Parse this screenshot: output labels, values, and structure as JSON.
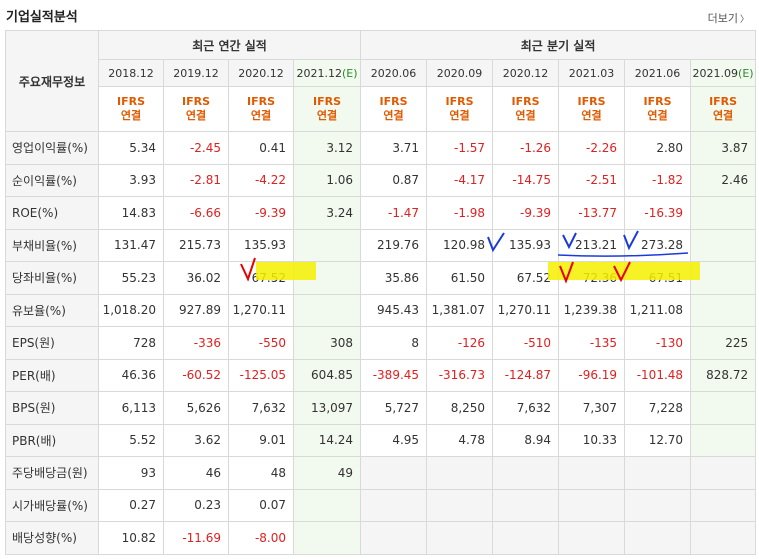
{
  "header": {
    "title": "기업실적분석",
    "more_label": "더보기"
  },
  "groups": {
    "label_header": "주요재무정보",
    "annual": "최근 연간 실적",
    "quarterly": "최근 분기 실적"
  },
  "annual_dates": [
    "2018.12",
    "2019.12",
    "2020.12",
    "2021.12"
  ],
  "quarter_dates": [
    "2020.06",
    "2020.09",
    "2020.12",
    "2021.03",
    "2021.06",
    "2021.09"
  ],
  "estimate_mark": "(E)",
  "ifrs": {
    "line1": "IFRS",
    "line2": "연결"
  },
  "rows": [
    {
      "label": "영업이익률(%)",
      "values": [
        "5.34",
        "-2.45",
        "0.41",
        "3.12",
        "3.71",
        "-1.57",
        "-1.26",
        "-2.26",
        "2.80",
        "3.87"
      ]
    },
    {
      "label": "순이익률(%)",
      "values": [
        "3.93",
        "-2.81",
        "-4.22",
        "1.06",
        "0.87",
        "-4.17",
        "-14.75",
        "-2.51",
        "-1.82",
        "2.46"
      ]
    },
    {
      "label": "ROE(%)",
      "values": [
        "14.83",
        "-6.66",
        "-9.39",
        "3.24",
        "-1.47",
        "-1.98",
        "-9.39",
        "-13.77",
        "-16.39",
        ""
      ]
    },
    {
      "label": "부채비율(%)",
      "values": [
        "131.47",
        "215.73",
        "135.93",
        "",
        "219.76",
        "120.98",
        "135.93",
        "213.21",
        "273.28",
        ""
      ]
    },
    {
      "label": "당좌비율(%)",
      "values": [
        "55.23",
        "36.02",
        "67.52",
        "",
        "35.86",
        "61.50",
        "67.52",
        "72.36",
        "67.51",
        ""
      ]
    },
    {
      "label": "유보율(%)",
      "values": [
        "1,018.20",
        "927.89",
        "1,270.11",
        "",
        "945.43",
        "1,381.07",
        "1,270.11",
        "1,239.38",
        "1,211.08",
        ""
      ]
    },
    {
      "label": "EPS(원)",
      "values": [
        "728",
        "-336",
        "-550",
        "308",
        "8",
        "-126",
        "-510",
        "-135",
        "-130",
        "225"
      ]
    },
    {
      "label": "PER(배)",
      "values": [
        "46.36",
        "-60.52",
        "-125.05",
        "604.85",
        "-389.45",
        "-316.73",
        "-124.87",
        "-96.19",
        "-101.48",
        "828.72"
      ]
    },
    {
      "label": "BPS(원)",
      "values": [
        "6,113",
        "5,626",
        "7,632",
        "13,097",
        "5,727",
        "8,250",
        "7,632",
        "7,307",
        "7,228",
        ""
      ]
    },
    {
      "label": "PBR(배)",
      "values": [
        "5.52",
        "3.62",
        "9.01",
        "14.24",
        "4.95",
        "4.78",
        "8.94",
        "10.33",
        "12.70",
        ""
      ]
    },
    {
      "label": "주당배당금(원)",
      "values": [
        "93",
        "46",
        "48",
        "49",
        null,
        null,
        null,
        null,
        null,
        null
      ]
    },
    {
      "label": "시가배당률(%)",
      "values": [
        "0.27",
        "0.23",
        "0.07",
        "",
        null,
        null,
        null,
        null,
        null,
        null
      ]
    },
    {
      "label": "배당성향(%)",
      "values": [
        "10.82",
        "-11.69",
        "-8.00",
        "",
        null,
        null,
        null,
        null,
        null,
        null
      ]
    }
  ],
  "colors": {
    "negative": "#e02020",
    "ifrs": "#e05a00",
    "estimate_bg": "#f2f9ee",
    "highlight": "#f5f000",
    "pen_red": "#e60000",
    "pen_blue": "#1a3bd6"
  }
}
